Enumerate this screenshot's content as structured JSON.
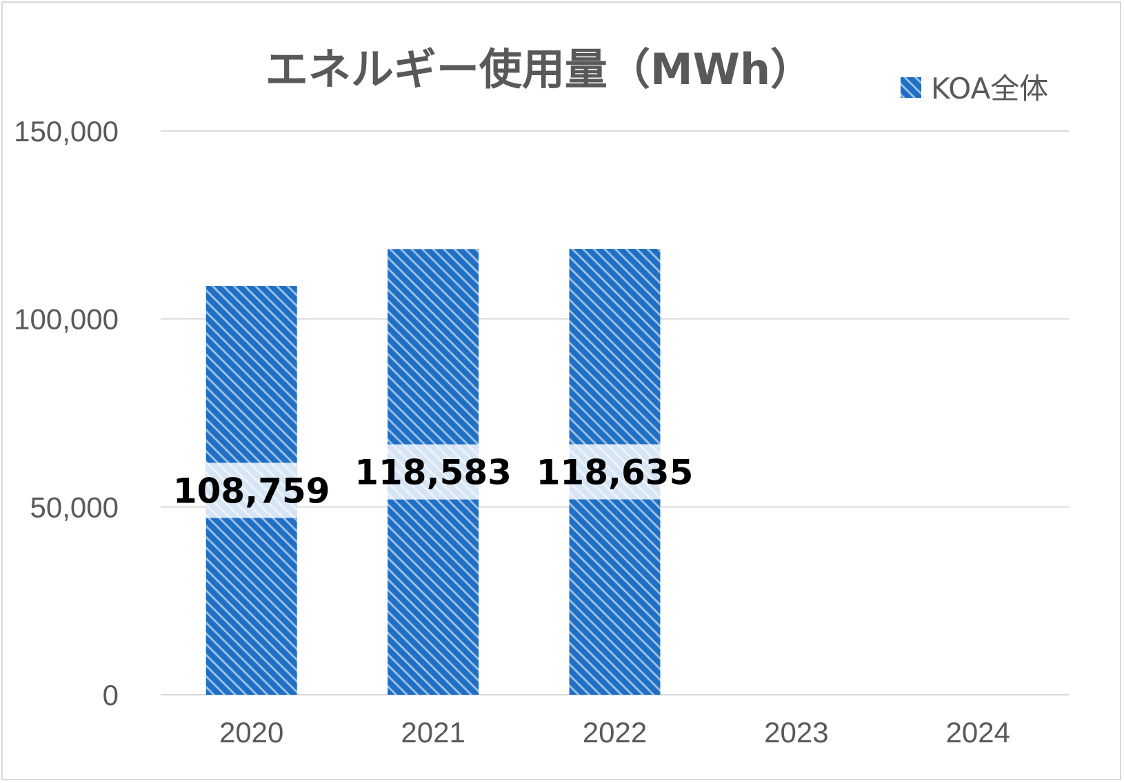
{
  "chart_data": {
    "type": "bar",
    "title": "エネルギー使用量（MWh）",
    "categories": [
      "2020",
      "2021",
      "2022",
      "2023",
      "2024"
    ],
    "series": [
      {
        "name": "KOA全体",
        "values": [
          108759,
          118583,
          118635,
          null,
          null
        ]
      }
    ],
    "data_labels": [
      "108,759",
      "118,583",
      "118,635",
      "",
      ""
    ],
    "y_ticks": [
      "0",
      "50,000",
      "100,000",
      "150,000"
    ],
    "y_tick_values": [
      0,
      50000,
      100000,
      150000
    ],
    "ylim": [
      0,
      150000
    ],
    "grid": true,
    "legend": "top-right",
    "colors": {
      "bar": "#1f6fc4",
      "hatch": "#ffffff",
      "grid": "#d9d9d9",
      "text": "#595959"
    }
  }
}
